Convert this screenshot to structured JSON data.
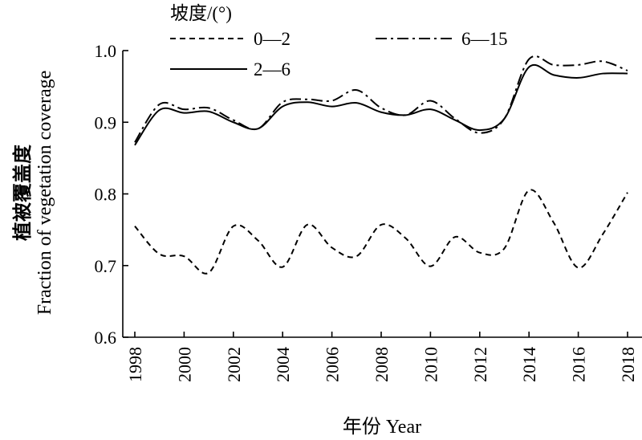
{
  "chart_data": {
    "type": "line",
    "xlabel": "年份 Year",
    "ylabel_cn": "植被覆盖度",
    "ylabel_en": "Fraction of vegetation coverage",
    "legend_title": "坡度/(°)",
    "xlim": [
      1997.5,
      2018.5
    ],
    "ylim": [
      0.6,
      1.0
    ],
    "xticks": [
      1998,
      2000,
      2002,
      2004,
      2006,
      2008,
      2010,
      2012,
      2014,
      2016,
      2018
    ],
    "yticks": [
      0.6,
      0.7,
      0.8,
      0.9,
      1.0
    ],
    "ytick_labels": [
      "0.6",
      "0.7",
      "0.8",
      "0.9",
      "1.0"
    ],
    "x": [
      1998,
      1999,
      2000,
      2001,
      2002,
      2003,
      2004,
      2005,
      2006,
      2007,
      2008,
      2009,
      2010,
      2011,
      2012,
      2013,
      2014,
      2015,
      2016,
      2017,
      2018
    ],
    "series": [
      {
        "name": "0—2",
        "style": "dashed",
        "values": [
          0.755,
          0.716,
          0.713,
          0.69,
          0.755,
          0.735,
          0.698,
          0.757,
          0.725,
          0.713,
          0.757,
          0.738,
          0.699,
          0.74,
          0.718,
          0.724,
          0.805,
          0.76,
          0.697,
          0.744,
          0.802
        ]
      },
      {
        "name": "2—6",
        "style": "solid",
        "values": [
          0.868,
          0.917,
          0.913,
          0.915,
          0.9,
          0.891,
          0.922,
          0.928,
          0.922,
          0.927,
          0.914,
          0.91,
          0.918,
          0.903,
          0.889,
          0.905,
          0.977,
          0.966,
          0.962,
          0.968,
          0.968
        ]
      },
      {
        "name": "6—15",
        "style": "dashdot",
        "values": [
          0.872,
          0.925,
          0.918,
          0.92,
          0.903,
          0.891,
          0.928,
          0.932,
          0.93,
          0.945,
          0.92,
          0.91,
          0.93,
          0.905,
          0.885,
          0.905,
          0.988,
          0.98,
          0.98,
          0.985,
          0.972
        ]
      }
    ],
    "legend_placement": "top"
  }
}
